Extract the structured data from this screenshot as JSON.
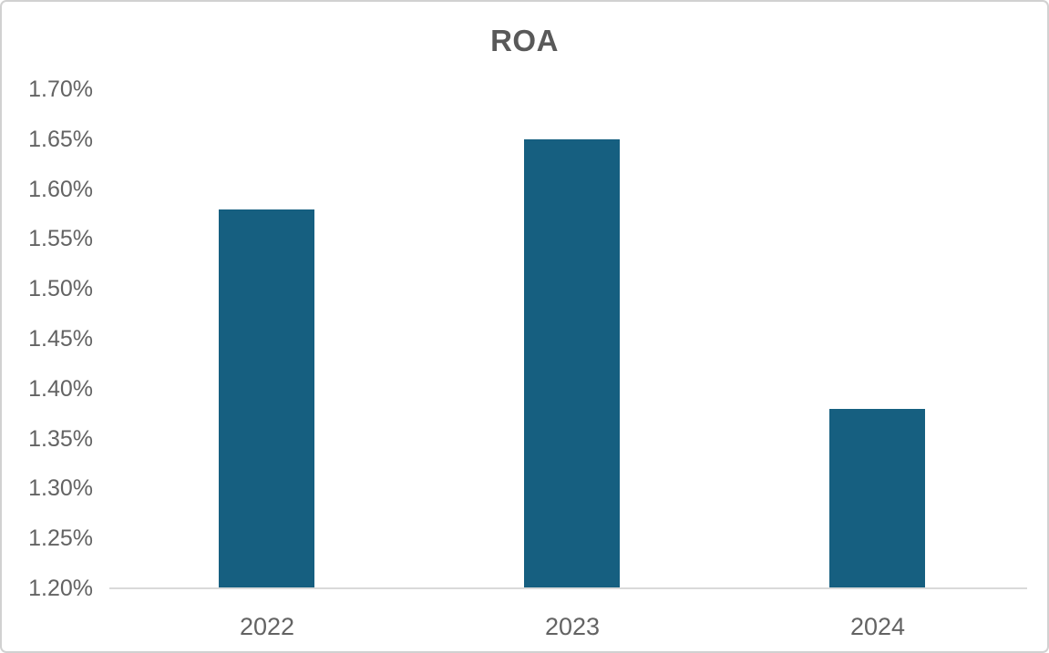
{
  "chart_data": {
    "type": "bar",
    "title": "ROA",
    "categories": [
      "2022",
      "2023",
      "2024"
    ],
    "values": [
      1.58,
      1.65,
      1.38
    ],
    "value_unit": "%",
    "xlabel": "",
    "ylabel": "",
    "ylim": [
      1.2,
      1.7
    ],
    "ytick_step": 0.05,
    "ytick_labels": [
      "1.70%",
      "1.65%",
      "1.60%",
      "1.55%",
      "1.50%",
      "1.45%",
      "1.40%",
      "1.35%",
      "1.30%",
      "1.25%",
      "1.20%"
    ],
    "grid": false,
    "legend": false,
    "style": {
      "bar_color": "#165F80",
      "axis_line_color": "#D9D9D9",
      "title_color": "#595959",
      "tick_label_color": "#636363",
      "background_color": "#FFFFFF",
      "frame_border_color": "#D1D1D1"
    }
  }
}
